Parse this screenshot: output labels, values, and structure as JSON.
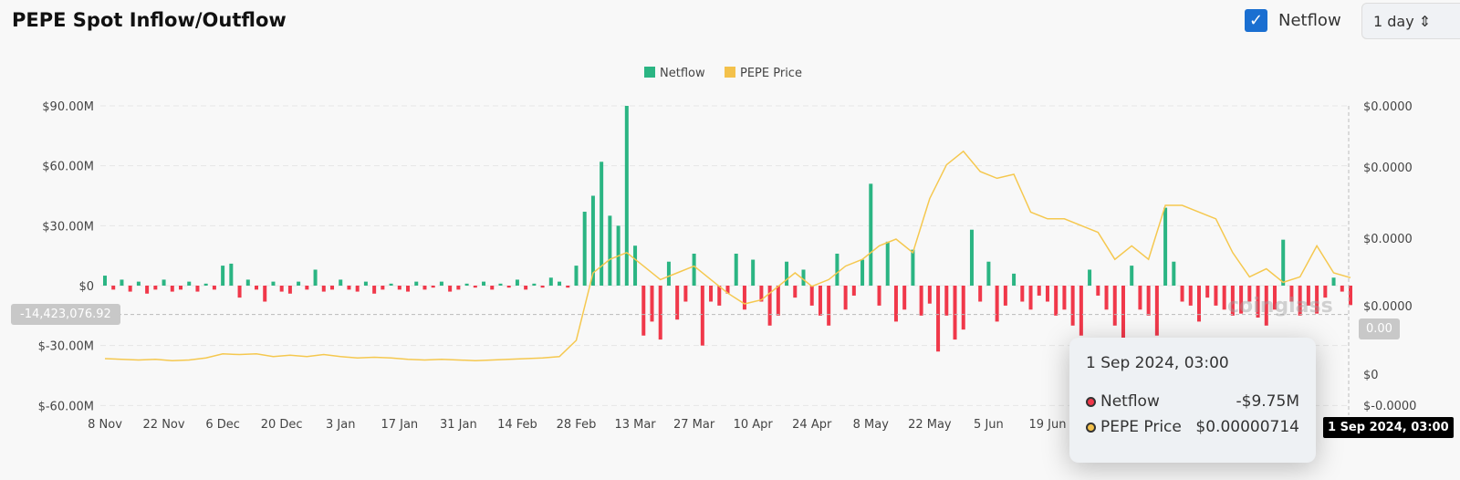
{
  "header": {
    "title": "PEPE Spot Inflow/Outflow",
    "netflow_toggle_label": "Netflow",
    "netflow_checked": true,
    "interval": "1 day"
  },
  "chart_data": {
    "type": "bar+line",
    "legend": [
      {
        "name": "Netflow",
        "color": "#2bb583"
      },
      {
        "name": "PEPE Price",
        "color": "#f3c14b"
      }
    ],
    "legend_position": "top-center",
    "x_ticks": [
      "8 Nov",
      "22 Nov",
      "6 Dec",
      "20 Dec",
      "3 Jan",
      "17 Jan",
      "31 Jan",
      "14 Feb",
      "28 Feb",
      "13 Mar",
      "27 Mar",
      "10 Apr",
      "24 Apr",
      "8 May",
      "22 May",
      "5 Jun",
      "19 Jun"
    ],
    "y_left_ticks": [
      "$90.00M",
      "$60.00M",
      "$30.00M",
      "$0",
      "$-30.00M",
      "$-60.00M"
    ],
    "y_left_range_musd": [
      -60,
      90
    ],
    "y_right_ticks": [
      "$0.0000",
      "$0.0000",
      "$0.0000",
      "$0.0000",
      "$0",
      "$-0.0000"
    ],
    "y_right_range_usd_e6": [
      -3,
      20
    ],
    "grid": true,
    "colors": {
      "positive": "#2bb583",
      "negative": "#f0384a",
      "price": "#f5c84f"
    },
    "netflow_musd_every_2_days": [
      5,
      -2,
      3,
      -3,
      2,
      -4,
      -2,
      3,
      -3,
      -2,
      2,
      -3,
      1,
      -2,
      10,
      11,
      -6,
      3,
      -2,
      -8,
      2,
      -3,
      -4,
      2,
      -2,
      8,
      -3,
      -2,
      3,
      -2,
      -3,
      2,
      -4,
      -2,
      1,
      -2,
      -3,
      2,
      -2,
      -1,
      2,
      -3,
      -2,
      1,
      -1,
      2,
      -2,
      1,
      -1,
      3,
      -2,
      1,
      -1,
      4,
      2,
      -1,
      10,
      37,
      45,
      62,
      35,
      30,
      90,
      20,
      -25,
      -18,
      -27,
      12,
      -17,
      -8,
      16,
      -30,
      -8,
      -10,
      -4,
      16,
      -12,
      13,
      -8,
      -20,
      -15,
      12,
      -6,
      8,
      -10,
      -15,
      -20,
      16,
      -12,
      -5,
      13,
      51,
      -10,
      22,
      -18,
      -12,
      18,
      -15,
      -9,
      -33,
      -15,
      -27,
      -22,
      28,
      -8,
      12,
      -18,
      -10,
      6,
      -8,
      -12,
      -5,
      -8,
      -15,
      -12,
      -20,
      -25,
      8,
      -5,
      -12,
      -20,
      -27,
      10,
      -12,
      -15,
      -25,
      39,
      12,
      -8,
      -10,
      -18,
      -6,
      -10,
      -12,
      -15,
      -14,
      -8,
      -16,
      -20,
      -12,
      23,
      -8,
      -15,
      -10,
      -14,
      -6,
      4,
      -3,
      -9.75
    ],
    "price_usd_e6_every_4_days": [
      1.15,
      1.1,
      1.05,
      1.1,
      1.0,
      1.05,
      1.2,
      1.5,
      1.45,
      1.5,
      1.3,
      1.4,
      1.3,
      1.45,
      1.3,
      1.2,
      1.25,
      1.2,
      1.1,
      1.05,
      1.1,
      1.05,
      1.0,
      1.05,
      1.1,
      1.15,
      1.2,
      1.3,
      2.5,
      7.5,
      8.5,
      9,
      8,
      7,
      7.5,
      8,
      7,
      6,
      5.2,
      5.5,
      6.5,
      7.5,
      6.5,
      7,
      8,
      8.5,
      9.5,
      10,
      9,
      13,
      15.5,
      16.5,
      15,
      14.5,
      14.8,
      12,
      11.5,
      11.5,
      11,
      10.5,
      8.5,
      9.5,
      8.5,
      12.5,
      12.5,
      12,
      11.5,
      9,
      7.2,
      7.8,
      6.8,
      7.2,
      9.5,
      7.5,
      7.14
    ]
  },
  "crosshair": {
    "y_value_label": "-14,423,076.92",
    "right_value_label": "0.00",
    "x_label": "1 Sep 2024, 03:00"
  },
  "tooltip": {
    "date": "1 Sep 2024, 03:00",
    "rows": [
      {
        "label": "Netflow",
        "value": "-$9.75M",
        "color": "#f0384a"
      },
      {
        "label": "PEPE Price",
        "value": "$0.00000714",
        "color": "#f3c14b"
      }
    ]
  },
  "watermark": "coinglass"
}
